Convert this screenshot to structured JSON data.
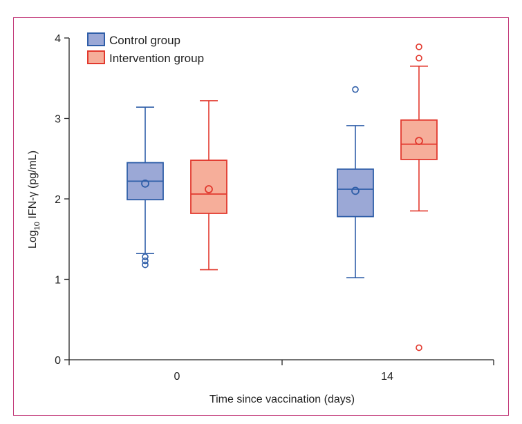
{
  "chart_data": {
    "type": "box",
    "title": "",
    "xlabel": "Time since vaccination (days)",
    "ylabel_prefix": "Log",
    "ylabel_subscript": "10",
    "ylabel_suffix": " IFN-γ (pg/mL)",
    "ylim": [
      0,
      4
    ],
    "yticks": [
      "0",
      "1",
      "2",
      "3",
      "4"
    ],
    "categories": [
      "0",
      "14"
    ],
    "legend_position": "top-left",
    "series": [
      {
        "name": "Control group",
        "color": "#2f5ea8",
        "fill": "#9ba8d6",
        "boxes": [
          {
            "category": "0",
            "whisker_low": 1.32,
            "q1": 1.99,
            "median": 2.22,
            "q3": 2.45,
            "whisker_high": 3.14,
            "mean": 2.19,
            "outliers": [
              1.18,
              1.23,
              1.28
            ]
          },
          {
            "category": "14",
            "whisker_low": 1.02,
            "q1": 1.78,
            "median": 2.12,
            "q3": 2.37,
            "whisker_high": 2.91,
            "mean": 2.1,
            "outliers": [
              3.36
            ]
          }
        ]
      },
      {
        "name": "Intervention group",
        "color": "#e2392e",
        "fill": "#f6ae9a",
        "boxes": [
          {
            "category": "0",
            "whisker_low": 1.12,
            "q1": 1.82,
            "median": 2.06,
            "q3": 2.48,
            "whisker_high": 3.22,
            "mean": 2.12,
            "outliers": []
          },
          {
            "category": "14",
            "whisker_low": 1.85,
            "q1": 2.49,
            "median": 2.68,
            "q3": 2.98,
            "whisker_high": 3.65,
            "mean": 2.72,
            "outliers": [
              3.75,
              3.89,
              0.15
            ]
          }
        ]
      }
    ]
  }
}
